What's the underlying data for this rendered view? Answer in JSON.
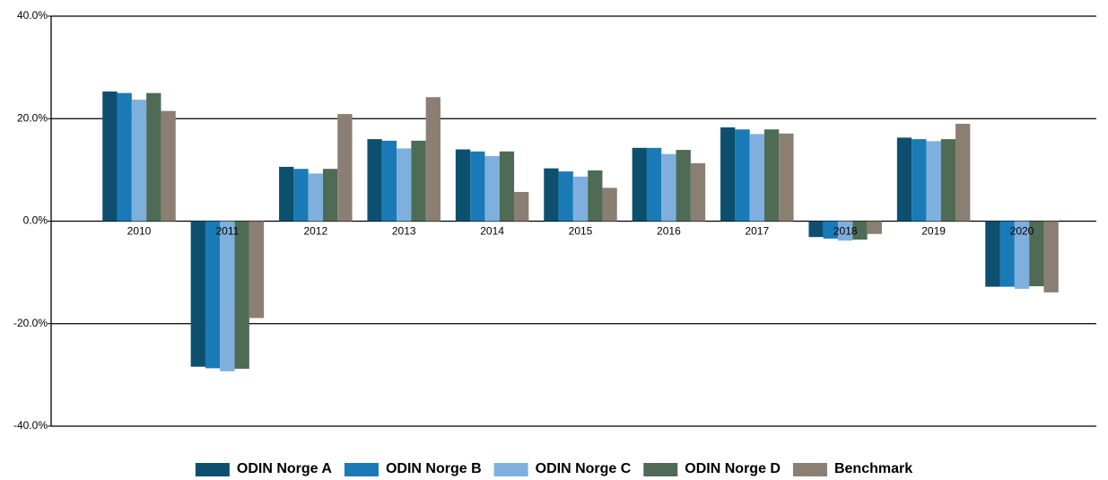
{
  "chart_data": {
    "type": "bar",
    "categories": [
      "2010",
      "2011",
      "2012",
      "2013",
      "2014",
      "2015",
      "2016",
      "2017",
      "2018",
      "2019",
      "2020"
    ],
    "series": [
      {
        "name": "ODIN Norge A",
        "color": "#0d4f6e",
        "values": [
          25.3,
          -28.4,
          10.6,
          16.0,
          14.0,
          10.3,
          14.3,
          18.3,
          -3.1,
          16.3,
          -12.8
        ]
      },
      {
        "name": "ODIN Norge B",
        "color": "#1a7ab5",
        "values": [
          25.0,
          -28.7,
          10.2,
          15.7,
          13.6,
          9.7,
          14.3,
          17.9,
          -3.4,
          16.0,
          -12.8
        ]
      },
      {
        "name": "ODIN Norge C",
        "color": "#7fb0dd",
        "values": [
          23.7,
          -29.3,
          9.3,
          14.2,
          12.7,
          8.7,
          13.1,
          17.0,
          -3.8,
          15.6,
          -13.2
        ]
      },
      {
        "name": "ODIN Norge D",
        "color": "#4f6b55",
        "values": [
          25.0,
          -28.8,
          10.2,
          15.7,
          13.6,
          9.9,
          13.9,
          17.9,
          -3.6,
          16.0,
          -12.7
        ]
      },
      {
        "name": "Benchmark",
        "color": "#8a7f72",
        "values": [
          21.5,
          -18.9,
          20.9,
          24.2,
          5.7,
          6.5,
          11.3,
          17.1,
          -2.5,
          19.0,
          -13.9
        ]
      }
    ],
    "ylim": [
      -40,
      40
    ],
    "yticks": [
      {
        "value": -40,
        "label": "-40.0%"
      },
      {
        "value": -20,
        "label": "-20.0%"
      },
      {
        "value": 0,
        "label": "0.0%"
      },
      {
        "value": 20,
        "label": "20.0%"
      },
      {
        "value": 40,
        "label": "40.0%"
      }
    ],
    "grid": true,
    "legend": "bottom"
  }
}
